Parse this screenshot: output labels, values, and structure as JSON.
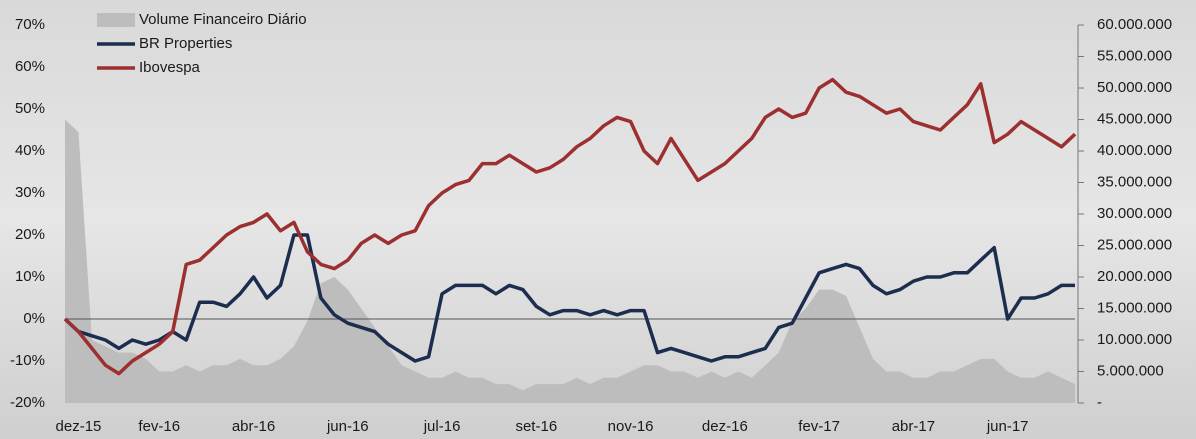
{
  "chart_data": {
    "type": "line",
    "categories": [
      null,
      "dez-15",
      null,
      null,
      null,
      null,
      null,
      "fev-16",
      null,
      null,
      null,
      null,
      null,
      null,
      "abr-16",
      null,
      null,
      null,
      null,
      null,
      null,
      "jun-16",
      null,
      null,
      null,
      null,
      null,
      null,
      "jul-16",
      null,
      null,
      null,
      null,
      null,
      null,
      "set-16",
      null,
      null,
      null,
      null,
      null,
      null,
      "nov-16",
      null,
      null,
      null,
      null,
      null,
      null,
      "dez-16",
      null,
      null,
      null,
      null,
      null,
      null,
      "fev-17",
      null,
      null,
      null,
      null,
      null,
      null,
      "abr-17",
      null,
      null,
      null,
      null,
      null,
      null,
      "jun-17",
      null,
      null,
      null,
      null,
      null
    ],
    "series": [
      {
        "name": "Volume Financeiro Diário",
        "color": "#bdbdbd",
        "style": "area",
        "axis": "y2",
        "values": [
          45000000,
          43000000,
          10000000,
          9000000,
          8000000,
          8000000,
          7000000,
          5000000,
          5000000,
          6000000,
          5000000,
          6000000,
          6000000,
          7000000,
          6000000,
          6000000,
          7000000,
          9000000,
          13000000,
          19000000,
          20000000,
          18000000,
          15000000,
          12000000,
          9000000,
          6000000,
          5000000,
          4000000,
          4000000,
          5000000,
          4000000,
          4000000,
          3000000,
          3000000,
          2000000,
          3000000,
          3000000,
          3000000,
          4000000,
          3000000,
          4000000,
          4000000,
          5000000,
          6000000,
          6000000,
          5000000,
          5000000,
          4000000,
          5000000,
          4000000,
          5000000,
          4000000,
          6000000,
          8000000,
          13000000,
          15000000,
          18000000,
          18000000,
          17000000,
          12000000,
          7000000,
          5000000,
          5000000,
          4000000,
          4000000,
          5000000,
          5000000,
          6000000,
          7000000,
          7000000,
          5000000,
          4000000,
          4000000,
          5000000,
          4000000,
          3000000
        ]
      },
      {
        "name": "BR Properties",
        "color": "#1c2d4f",
        "values": [
          0,
          -3,
          -4,
          -5,
          -7,
          -5,
          -6,
          -5,
          -3,
          -5,
          4,
          4,
          3,
          6,
          10,
          5,
          8,
          20,
          20,
          5,
          1,
          -1,
          -2,
          -3,
          -6,
          -8,
          -10,
          -9,
          6,
          8,
          8,
          8,
          6,
          8,
          7,
          3,
          1,
          2,
          2,
          1,
          2,
          1,
          2,
          2,
          -8,
          -7,
          -8,
          -9,
          -10,
          -9,
          -9,
          -8,
          -7,
          -2,
          -1,
          5,
          11,
          12,
          13,
          12,
          8,
          6,
          7,
          9,
          10,
          10,
          11,
          11,
          14,
          17,
          0,
          5,
          5,
          6,
          8,
          8
        ]
      },
      {
        "name": "Ibovespa",
        "color": "#9c2f2f",
        "values": [
          0,
          -3,
          -7,
          -11,
          -13,
          -10,
          -8,
          -6,
          -3,
          13,
          14,
          17,
          20,
          22,
          23,
          25,
          21,
          23,
          16,
          13,
          12,
          14,
          18,
          20,
          18,
          20,
          21,
          27,
          30,
          32,
          33,
          37,
          37,
          39,
          37,
          35,
          36,
          38,
          41,
          43,
          46,
          48,
          47,
          40,
          37,
          43,
          38,
          33,
          35,
          37,
          40,
          43,
          48,
          50,
          48,
          49,
          55,
          57,
          54,
          53,
          51,
          49,
          50,
          47,
          46,
          45,
          48,
          51,
          56,
          42,
          44,
          47,
          45,
          43,
          41,
          44
        ]
      }
    ],
    "ylim": [
      -20,
      70
    ],
    "yticks": [
      {
        "value": -20,
        "label": "-20%"
      },
      {
        "value": -10,
        "label": "-10%"
      },
      {
        "value": 0,
        "label": "0%"
      },
      {
        "value": 10,
        "label": "10%"
      },
      {
        "value": 20,
        "label": "20%"
      },
      {
        "value": 30,
        "label": "30%"
      },
      {
        "value": 40,
        "label": "40%"
      },
      {
        "value": 50,
        "label": "50%"
      },
      {
        "value": 60,
        "label": "60%"
      },
      {
        "value": 70,
        "label": "70%"
      }
    ],
    "y2lim": [
      0,
      60000000
    ],
    "y2ticks": [
      {
        "value": 0,
        "label": "-"
      },
      {
        "value": 5000000,
        "label": "5.000.000"
      },
      {
        "value": 10000000,
        "label": "10.000.000"
      },
      {
        "value": 15000000,
        "label": "15.000.000"
      },
      {
        "value": 20000000,
        "label": "20.000.000"
      },
      {
        "value": 25000000,
        "label": "25.000.000"
      },
      {
        "value": 30000000,
        "label": "30.000.000"
      },
      {
        "value": 35000000,
        "label": "35.000.000"
      },
      {
        "value": 40000000,
        "label": "40.000.000"
      },
      {
        "value": 45000000,
        "label": "45.000.000"
      },
      {
        "value": 50000000,
        "label": "50.000.000"
      },
      {
        "value": 55000000,
        "label": "55.000.000"
      },
      {
        "value": 60000000,
        "label": "60.000.000"
      }
    ],
    "legend": "upper left"
  }
}
